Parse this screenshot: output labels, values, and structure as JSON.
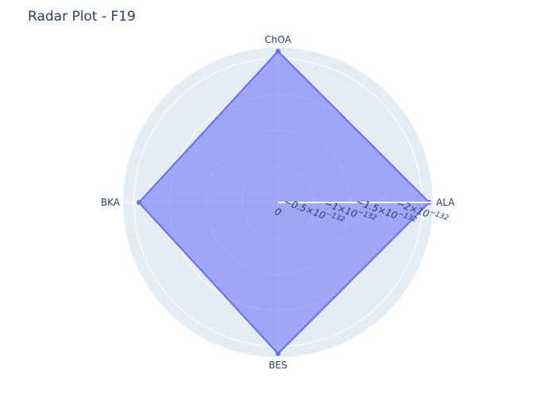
{
  "chart_data": {
    "type": "radar",
    "title": "Radar Plot - F19",
    "categories": [
      "ALA",
      "ChOA",
      "BKA",
      "BES"
    ],
    "series": [
      {
        "values": [
          -2.1e-132,
          -2.1e-132,
          -1.93e-132,
          -2.1e-132
        ],
        "fill": "toself"
      }
    ],
    "radial_axis": {
      "range": [
        0,
        -2.15e-132
      ],
      "ticks": [
        {
          "value": 0,
          "label": "0"
        },
        {
          "value": -5e-133,
          "label": "−0.5×10",
          "exp": "−132"
        },
        {
          "value": -1e-132,
          "label": "−1×10",
          "exp": "−132"
        },
        {
          "value": -1.5e-132,
          "label": "−1.5×10",
          "exp": "−132"
        },
        {
          "value": -2e-132,
          "label": "−2×10",
          "exp": "−132"
        }
      ]
    },
    "colors": {
      "series_line": "#636efa",
      "series_fill": "rgba(99,110,250,0.55)",
      "polar_bg": "#e5ecf6",
      "grid": "#ffffff"
    }
  }
}
